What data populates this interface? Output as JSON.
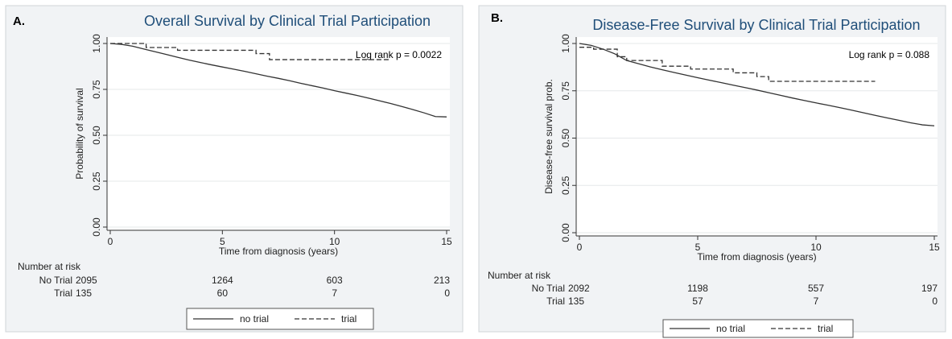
{
  "chart_data": [
    {
      "panel_label": "A.",
      "type": "line",
      "title": "Overall Survival by Clinical Trial Participation",
      "xlabel": "Time from diagnosis (years)",
      "ylabel": "Probability of survival",
      "xlim": [
        0,
        15
      ],
      "ylim": [
        0,
        1
      ],
      "xticks": [
        0,
        5,
        10,
        15
      ],
      "yticks": [
        0.0,
        0.25,
        0.5,
        0.75,
        1.0
      ],
      "ytick_labels": [
        "0.00",
        "0.25",
        "0.50",
        "0.75",
        "1.00"
      ],
      "grid": true,
      "annotation": "Log rank p = 0.0022",
      "series": [
        {
          "name": "no trial",
          "style": "solid",
          "x": [
            0,
            0.5,
            1,
            1.5,
            2,
            2.5,
            3,
            3.5,
            4,
            4.5,
            5,
            5.5,
            6,
            6.5,
            7,
            7.5,
            8,
            8.5,
            9,
            9.5,
            10,
            10.5,
            11,
            11.5,
            12,
            12.5,
            13,
            13.5,
            14,
            14.5,
            15
          ],
          "y": [
            1.0,
            0.995,
            0.985,
            0.97,
            0.955,
            0.94,
            0.925,
            0.91,
            0.897,
            0.884,
            0.872,
            0.86,
            0.848,
            0.835,
            0.822,
            0.81,
            0.797,
            0.783,
            0.77,
            0.757,
            0.743,
            0.73,
            0.717,
            0.703,
            0.688,
            0.673,
            0.657,
            0.64,
            0.622,
            0.602,
            0.6
          ]
        },
        {
          "name": "trial",
          "style": "dashed",
          "steps": [
            [
              0,
              1.0
            ],
            [
              1.6,
              0.978
            ],
            [
              3.0,
              0.963
            ],
            [
              6.5,
              0.945
            ],
            [
              7.1,
              0.912
            ],
            [
              12.5,
              0.912
            ]
          ]
        }
      ],
      "risk_table": {
        "header": "Number at risk",
        "rows": [
          {
            "label": "No Trial",
            "values": [
              "2095",
              "1264",
              "603",
              "213"
            ]
          },
          {
            "label": "Trial",
            "values": [
              "135",
              "60",
              "7",
              "0"
            ]
          }
        ]
      },
      "legend": {
        "position": "bottom",
        "entries": [
          "no trial",
          "trial"
        ]
      }
    },
    {
      "panel_label": "B.",
      "type": "line",
      "title": "Disease-Free Survival by Clinical Trial Participation",
      "xlabel": "Time from diagnosis (years)",
      "ylabel": "Disease-free survival prob.",
      "xlim": [
        0,
        15
      ],
      "ylim": [
        0,
        1
      ],
      "xticks": [
        0,
        5,
        10,
        15
      ],
      "yticks": [
        0.0,
        0.25,
        0.5,
        0.75,
        1.0
      ],
      "ytick_labels": [
        "0.00",
        "0.25",
        "0.50",
        "0.75",
        "1.00"
      ],
      "grid": true,
      "annotation": "Log rank p = 0.088",
      "series": [
        {
          "name": "no trial",
          "style": "solid",
          "x": [
            0,
            0.5,
            1,
            1.5,
            2,
            2.5,
            3,
            3.5,
            4,
            4.5,
            5,
            5.5,
            6,
            6.5,
            7,
            7.5,
            8,
            8.5,
            9,
            9.5,
            10,
            10.5,
            11,
            11.5,
            12,
            12.5,
            13,
            13.5,
            14,
            14.5,
            15
          ],
          "y": [
            1.0,
            0.99,
            0.97,
            0.945,
            0.91,
            0.893,
            0.876,
            0.861,
            0.847,
            0.833,
            0.819,
            0.806,
            0.793,
            0.78,
            0.767,
            0.754,
            0.74,
            0.726,
            0.712,
            0.699,
            0.686,
            0.674,
            0.661,
            0.648,
            0.634,
            0.62,
            0.607,
            0.594,
            0.581,
            0.57,
            0.565
          ]
        },
        {
          "name": "trial",
          "style": "dashed",
          "steps": [
            [
              0,
              0.98
            ],
            [
              0.6,
              0.97
            ],
            [
              1.6,
              0.93
            ],
            [
              2.0,
              0.91
            ],
            [
              3.5,
              0.88
            ],
            [
              4.7,
              0.865
            ],
            [
              6.5,
              0.845
            ],
            [
              7.5,
              0.825
            ],
            [
              8.0,
              0.8
            ],
            [
              12.5,
              0.8
            ]
          ]
        }
      ],
      "risk_table": {
        "header": "Number at risk",
        "rows": [
          {
            "label": "No Trial",
            "values": [
              "2092",
              "1198",
              "557",
              "197"
            ]
          },
          {
            "label": "Trial",
            "values": [
              "135",
              "57",
              "7",
              "0"
            ]
          }
        ]
      },
      "legend": {
        "position": "bottom",
        "entries": [
          "no trial",
          "trial"
        ]
      }
    }
  ]
}
